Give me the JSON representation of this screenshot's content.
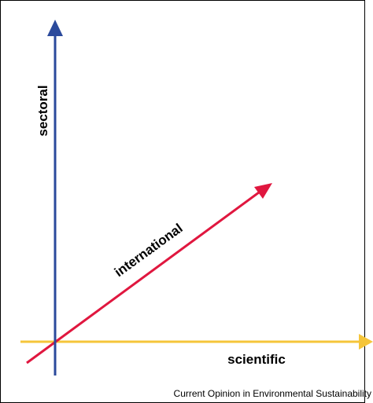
{
  "diagram": {
    "axes": {
      "sectoral": {
        "label": "sectoral",
        "color": "#2b4a9c"
      },
      "international": {
        "label": "international",
        "color": "#e0173f"
      },
      "scientific": {
        "label": "scientific",
        "color": "#f5c53a"
      }
    },
    "source": "Current Opinion in Environmental Sustainability"
  }
}
